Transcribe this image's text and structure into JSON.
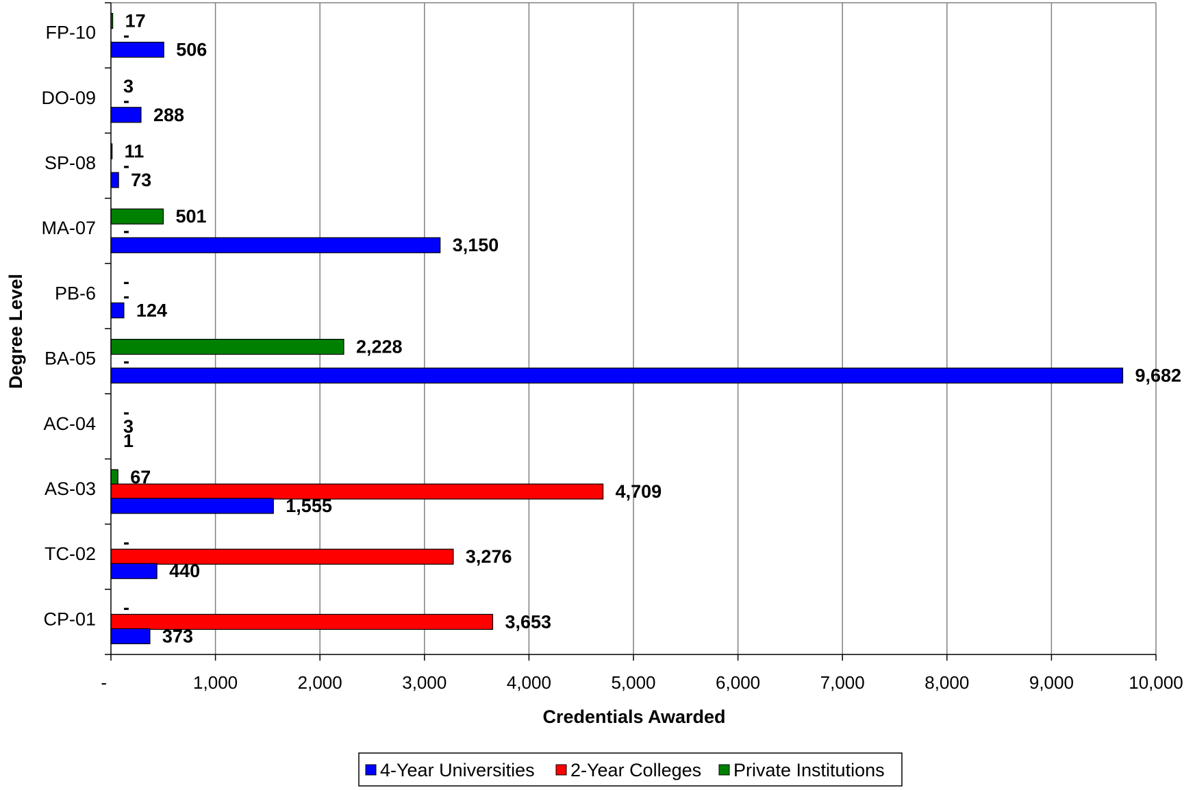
{
  "chart_data": {
    "type": "bar",
    "orientation": "horizontal",
    "xlabel": "Credentials Awarded",
    "ylabel": "Degree Level",
    "xlim": [
      0,
      10000
    ],
    "x_ticks": [
      0,
      1000,
      2000,
      3000,
      4000,
      5000,
      6000,
      7000,
      8000,
      9000,
      10000
    ],
    "x_tick_labels": [
      "-",
      "1,000",
      "2,000",
      "3,000",
      "4,000",
      "5,000",
      "6,000",
      "7,000",
      "8,000",
      "9,000",
      "10,000"
    ],
    "grid": "vertical",
    "legend_position": "bottom",
    "categories": [
      "FP-10",
      "DO-09",
      "SP-08",
      "MA-07",
      "PB-6",
      "BA-05",
      "AC-04",
      "AS-03",
      "TC-02",
      "CP-01"
    ],
    "series": [
      {
        "name": "4-Year Universities",
        "color": "#0000ff",
        "values": [
          506,
          288,
          73,
          3150,
          124,
          9682,
          1,
          1555,
          440,
          373
        ],
        "labels": [
          "506",
          "288",
          "73",
          "3,150",
          "124",
          "9,682",
          "1",
          "1,555",
          "440",
          "373"
        ]
      },
      {
        "name": "2-Year Colleges",
        "color": "#ff0000",
        "values": [
          0,
          0,
          0,
          0,
          0,
          0,
          3,
          4709,
          3276,
          3653
        ],
        "labels": [
          "-",
          "-",
          "-",
          "-",
          "-",
          "-",
          "3",
          "4,709",
          "3,276",
          "3,653"
        ]
      },
      {
        "name": "Private Institutions",
        "color": "#008000",
        "values": [
          17,
          3,
          11,
          501,
          0,
          2228,
          0,
          67,
          0,
          0
        ],
        "labels": [
          "17",
          "3",
          "11",
          "501",
          "-",
          "2,228",
          "-",
          "67",
          "-",
          "-"
        ]
      }
    ]
  }
}
